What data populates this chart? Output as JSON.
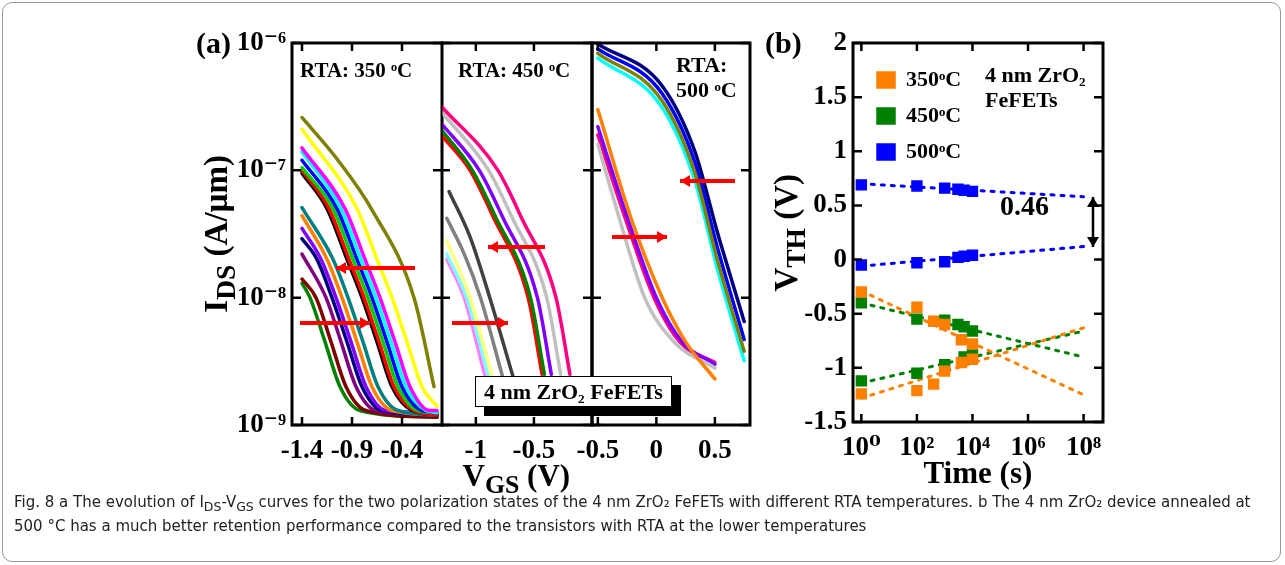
{
  "chart_data": [
    {
      "type": "line",
      "marker": "none",
      "line_style": "solid",
      "log": "y",
      "ylabel": "I$_{DS}$ (A/µm)",
      "xlim": [
        -1.5,
        0
      ],
      "xticks": [
        -1.4,
        -0.9,
        -0.4
      ],
      "ylim": [
        1e-09,
        1e-06
      ],
      "yticks": [
        {
          "value": 1e-09,
          "label": "10⁻⁹"
        },
        {
          "value": 1e-08,
          "label": "10⁻⁸"
        },
        {
          "value": 1e-07,
          "label": "10⁻⁷"
        },
        {
          "value": 1e-06,
          "label": "10⁻⁶"
        }
      ],
      "annotations": [
        "(a)",
        "RTA: 350 ᵒC"
      ],
      "series": [
        {
          "color": "#808000",
          "x": [
            -1.4,
            -1.04,
            -0.7,
            -0.28,
            -0.08
          ],
          "values": [
            2.6e-07,
            1.2e-07,
            4.9e-08,
            1e-08,
            2e-09
          ]
        },
        {
          "color": "#ffff00",
          "x": [
            -1.4,
            -0.85,
            -0.65,
            -0.5,
            -0.35,
            -0.2,
            -0.05
          ],
          "values": [
            2.1e-07,
            5e-08,
            2e-08,
            1e-08,
            4.5e-09,
            2e-09,
            1.4e-09
          ]
        },
        {
          "color": "#ff00ff",
          "x": [
            -1.4,
            -0.97,
            -0.77,
            -0.62,
            -0.47,
            -0.32,
            -0.12,
            -0.05
          ],
          "values": [
            1.5e-07,
            5e-08,
            2e-08,
            1e-08,
            4.5e-09,
            2e-09,
            1.3e-09,
            1.3e-09
          ]
        },
        {
          "color": "#00ffff",
          "x": [
            -1.4,
            -1.01,
            -0.81,
            -0.66,
            -0.51,
            -0.36,
            -0.16,
            -0.05
          ],
          "values": [
            1.4e-07,
            5e-08,
            2e-08,
            1e-08,
            4.5e-09,
            2e-09,
            1.3e-09,
            1.25e-09
          ]
        },
        {
          "color": "#0000ff",
          "x": [
            -1.4,
            -1.05,
            -0.85,
            -0.7,
            -0.55,
            -0.4,
            -0.2,
            -0.05
          ],
          "values": [
            1.2e-07,
            5e-08,
            2e-08,
            1e-08,
            4.5e-09,
            2e-09,
            1.3e-09,
            1.25e-09
          ]
        },
        {
          "color": "#00cc00",
          "x": [
            -1.4,
            -1.09,
            -0.89,
            -0.74,
            -0.59,
            -0.44,
            -0.24,
            -0.05
          ],
          "values": [
            1.05e-07,
            5e-08,
            2e-08,
            1e-08,
            4.5e-09,
            2e-09,
            1.3e-09,
            1.25e-09
          ]
        },
        {
          "color": "#ff0000",
          "x": [
            -1.4,
            -1.13,
            -0.93,
            -0.78,
            -0.63,
            -0.48,
            -0.28,
            -0.05
          ],
          "values": [
            1e-07,
            5e-08,
            2e-08,
            1e-08,
            4.5e-09,
            2e-09,
            1.3e-09,
            1.2e-09
          ]
        },
        {
          "color": "#000000",
          "x": [
            -1.4,
            -1.15,
            -0.95,
            -0.8,
            -0.65,
            -0.5,
            -0.3,
            -0.05
          ],
          "values": [
            9.5e-08,
            5e-08,
            2e-08,
            1e-08,
            4.5e-09,
            2e-09,
            1.3e-09,
            1.2e-09
          ]
        },
        {
          "color": "#008080",
          "x": [
            -1.4,
            -1.09,
            -0.94,
            -0.79,
            -0.64,
            -0.44,
            -0.05
          ],
          "values": [
            5.1e-08,
            2e-08,
            1e-08,
            4.5e-09,
            2e-09,
            1.3e-09,
            1.2e-09
          ]
        },
        {
          "color": "#ff8000",
          "x": [
            -1.4,
            -1.15,
            -1.0,
            -0.85,
            -0.7,
            -0.5,
            -0.05
          ],
          "values": [
            4.4e-08,
            2e-08,
            1e-08,
            4.5e-09,
            2e-09,
            1.3e-09,
            1.2e-09
          ]
        },
        {
          "color": "#8000ff",
          "x": [
            -1.4,
            -1.21,
            -1.06,
            -0.91,
            -0.76,
            -0.56,
            -0.05
          ],
          "values": [
            3.5e-08,
            2e-08,
            1e-08,
            4.5e-09,
            2e-09,
            1.3e-09,
            1.25e-09
          ]
        },
        {
          "color": "#000080",
          "x": [
            -1.4,
            -1.25,
            -1.1,
            -0.95,
            -0.8,
            -0.6,
            -0.05
          ],
          "values": [
            2.9e-08,
            2e-08,
            1e-08,
            4.5e-09,
            2e-09,
            1.3e-09,
            1.2e-09
          ]
        },
        {
          "color": "#800080",
          "x": [
            -1.4,
            -1.16,
            -1.01,
            -0.86,
            -0.66,
            -0.05
          ],
          "values": [
            2.2e-08,
            1e-08,
            4.5e-09,
            2e-09,
            1.3e-09,
            1.2e-09
          ]
        },
        {
          "color": "#800000",
          "x": [
            -1.4,
            -1.26,
            -1.11,
            -0.96,
            -0.76,
            -0.05
          ],
          "values": [
            1.4e-08,
            1e-08,
            4.5e-09,
            2e-09,
            1.3e-09,
            1.15e-09
          ]
        },
        {
          "color": "#008000",
          "x": [
            -1.4,
            -1.32,
            -1.17,
            -1.02,
            -0.82,
            -0.05
          ],
          "values": [
            1.3e-08,
            1e-08,
            4.5e-09,
            2e-09,
            1.3e-09,
            1.15e-09
          ]
        }
      ]
    },
    {
      "type": "line",
      "marker": "none",
      "line_style": "solid",
      "log": "y",
      "tick_labels": "x",
      "xlabel": "V$_{GS}$ (V)",
      "xlim": [
        -1.3,
        0
      ],
      "xticks": [
        -1.0,
        -0.5
      ],
      "ylim": [
        1e-09,
        1e-06
      ],
      "yticks": [
        {
          "value": 1e-09,
          "label": null
        },
        {
          "value": 1e-08,
          "label": null
        },
        {
          "value": 1e-07,
          "label": null
        },
        {
          "value": 1e-06,
          "label": null
        }
      ],
      "annotations": [
        "RTA: 450 ᵒC",
        "4 nm ZrO₂ FeFETs"
      ],
      "series": [
        {
          "color": "#ff0080",
          "x": [
            -1.3,
            -0.81,
            -0.61,
            -0.31,
            -0.19
          ],
          "values": [
            3.2e-07,
            1e-07,
            4.3e-08,
            1e-08,
            2.5e-09
          ]
        },
        {
          "color": "#c0c0c0",
          "x": [
            -1.3,
            -0.89,
            -0.69,
            -0.39,
            -0.27
          ],
          "values": [
            2.9e-07,
            1e-07,
            4.3e-08,
            1e-08,
            2.5e-09
          ]
        },
        {
          "color": "#8000ff",
          "x": [
            -1.3,
            -0.97,
            -0.77,
            -0.47,
            -0.35
          ],
          "values": [
            2.35e-07,
            1e-07,
            4.3e-08,
            1e-08,
            2.5e-09
          ]
        },
        {
          "color": "#008000",
          "x": [
            -1.3,
            -1.03,
            -0.83,
            -0.53,
            -0.41
          ],
          "values": [
            2.1e-07,
            1e-07,
            4.3e-08,
            1e-08,
            2.5e-09
          ]
        },
        {
          "color": "#ff0000",
          "x": [
            -1.3,
            -1.05,
            -0.85,
            -0.55,
            -0.43
          ],
          "values": [
            1.9e-07,
            1e-07,
            4.3e-08,
            1e-08,
            2.5e-09
          ]
        },
        {
          "color": "#404040",
          "x": [
            -1.23,
            -1.05,
            -0.88,
            -0.68
          ],
          "values": [
            6.8e-08,
            3e-08,
            1e-08,
            2.4e-09
          ]
        },
        {
          "color": "#808080",
          "x": [
            -1.25,
            -1.1,
            -0.96,
            -0.77
          ],
          "values": [
            4.2e-08,
            2.2e-08,
            1e-08,
            2.4e-09
          ]
        },
        {
          "color": "#ffff80",
          "x": [
            -1.25,
            -1.05,
            -0.86
          ],
          "values": [
            2.8e-08,
            1e-08,
            2.4e-09
          ]
        },
        {
          "color": "#80ffff",
          "x": [
            -1.25,
            -1.08,
            -0.89
          ],
          "values": [
            2.2e-08,
            1e-08,
            2.4e-09
          ]
        },
        {
          "color": "#ff80ff",
          "x": [
            -1.25,
            -1.1,
            -0.92
          ],
          "values": [
            2e-08,
            1e-08,
            2.4e-09
          ]
        }
      ]
    },
    {
      "type": "line",
      "marker": "none",
      "line_style": "solid",
      "log": "y",
      "tick_labels": "x",
      "xlim": [
        -0.55,
        0.8
      ],
      "xticks": [
        -0.5,
        0.0,
        0.5
      ],
      "ylim": [
        1e-09,
        1e-06
      ],
      "yticks": [
        {
          "value": 1e-09,
          "label": null
        },
        {
          "value": 1e-08,
          "label": null
        },
        {
          "value": 1e-07,
          "label": null
        },
        {
          "value": 1e-06,
          "label": null
        }
      ],
      "annotations": [
        "RTA: 500 ᵒC"
      ],
      "series": [
        {
          "color": "#000080",
          "x": [
            -0.5,
            0.05,
            0.33,
            0.52,
            0.75
          ],
          "values": [
            9.8e-07,
            4.6e-07,
            1.4e-07,
            3.3e-08,
            6.5e-09
          ]
        },
        {
          "color": "#808000",
          "x": [
            -0.5,
            0.05,
            0.33,
            0.52,
            0.75
          ],
          "values": [
            8.3e-07,
            3.5e-07,
            9.5e-08,
            2e-08,
            3.8e-09
          ]
        },
        {
          "color": "#00ffff",
          "x": [
            -0.5,
            0.05,
            0.33,
            0.52,
            0.75
          ],
          "values": [
            7.6e-07,
            3.1e-07,
            8.2e-08,
            1.7e-08,
            3.2e-09
          ]
        },
        {
          "color": "#0000ff",
          "x": [
            -0.5,
            0.05,
            0.33,
            0.52,
            0.75
          ],
          "values": [
            9e-07,
            4e-07,
            1.15e-07,
            2.5e-08,
            4.7e-09
          ]
        },
        {
          "color": "#ff8000",
          "x": [
            -0.5,
            -0.22,
            0.05,
            0.25,
            0.5
          ],
          "values": [
            3e-07,
            4.3e-08,
            1e-08,
            4.5e-09,
            2.3e-09
          ]
        },
        {
          "color": "#c0c0c0",
          "x": [
            -0.5,
            -0.32,
            -0.1,
            0.15,
            0.5
          ],
          "values": [
            1.6e-07,
            4.3e-08,
            1e-08,
            4.5e-09,
            2.8e-09
          ]
        },
        {
          "color": "#8000ff",
          "x": [
            -0.5,
            -0.25,
            0.0,
            0.22,
            0.5
          ],
          "values": [
            2.2e-07,
            4.3e-08,
            1e-08,
            4.5e-09,
            3e-09
          ]
        },
        {
          "color": "#ff0080",
          "x": [
            -0.5,
            -0.27,
            -0.02,
            0.2,
            0.5
          ],
          "values": [
            1.9e-07,
            4.3e-08,
            1e-08,
            4.5e-09,
            3.1e-09
          ]
        }
      ]
    },
    {
      "type": "scatter",
      "marker": "square",
      "log": "x",
      "legend": "top left",
      "xlabel": "Time (s)",
      "ylabel": "V$_{TH}$ (V)",
      "xlim": [
        0.5,
        500000000
      ],
      "xticks": [
        {
          "value": 1,
          "label": "10⁰"
        },
        {
          "value": 100,
          "label": "10²"
        },
        {
          "value": 10000,
          "label": "10⁴"
        },
        {
          "value": 1000000,
          "label": "10⁶"
        },
        {
          "value": 100000000,
          "label": "10⁸"
        }
      ],
      "ylim": [
        -1.5,
        2.0
      ],
      "yticks": [
        -1.5,
        -1.0,
        -0.5,
        0.0,
        0.5,
        1.0,
        1.5,
        2.0
      ],
      "annotations": [
        "(b)",
        "4 nm ZrO₂ FeFETs",
        "0.46",
        "Fig. 8 a The evolution of I$_{DS}$-V$_{GS}$ curves for the two polarization states of the 4 nm ZrO₂ FeFETs with different RTA temperatures. b The 4 nm ZrO₂ device annealed at 500 °C has a much better retention performance compared to the transistors with RTA at the lower temperatures"
      ],
      "series": [
        {
          "type": "line",
          "marker": "none",
          "line_style": "dotted",
          "color": "#ff8000",
          "x": [
            1,
            100000000
          ],
          "values": [
            -0.29,
            -1.25
          ]
        },
        {
          "type": "line",
          "marker": "none",
          "line_style": "dotted",
          "color": "#ff8000",
          "x": [
            1,
            100000000
          ],
          "values": [
            -1.28,
            -0.63
          ]
        },
        {
          "type": "line",
          "marker": "none",
          "line_style": "dotted",
          "color": "#008000",
          "x": [
            1,
            100000000
          ],
          "values": [
            -0.4,
            -0.9
          ]
        },
        {
          "type": "line",
          "marker": "none",
          "line_style": "dotted",
          "color": "#008000",
          "x": [
            1,
            100000000
          ],
          "values": [
            -1.14,
            -0.66
          ]
        },
        {
          "type": "line",
          "marker": "none",
          "line_style": "dotted",
          "color": "#0000ff",
          "x": [
            1,
            100000000
          ],
          "values": [
            0.7,
            0.58
          ]
        },
        {
          "type": "line",
          "marker": "none",
          "line_style": "dotted",
          "color": "#0000ff",
          "x": [
            1,
            100000000
          ],
          "values": [
            -0.06,
            0.12
          ]
        },
        {
          "name": "350ᵒC",
          "color": "#ff8000",
          "x": [
            1,
            100,
            400,
            1000,
            4000,
            10000,
            1,
            100,
            400,
            1000,
            4000,
            10000
          ],
          "values": [
            -0.3,
            -0.44,
            -0.57,
            -0.6,
            -0.74,
            -0.78,
            -1.24,
            -1.21,
            -1.15,
            -1.03,
            -0.95,
            -0.92
          ]
        },
        {
          "name": "450ᵒC",
          "color": "#008000",
          "x": [
            1,
            100,
            1000,
            3000,
            5000,
            10000,
            1,
            100,
            1000,
            5000,
            10000
          ],
          "values": [
            -0.4,
            -0.55,
            -0.56,
            -0.6,
            -0.62,
            -0.66,
            -1.12,
            -1.05,
            -0.97,
            -0.9,
            -0.86
          ]
        },
        {
          "name": "500ᵒC",
          "color": "#0000ff",
          "x": [
            1,
            100,
            1000,
            3000,
            5000,
            10000,
            1,
            100,
            1000,
            3000,
            5000,
            10000
          ],
          "values": [
            0.69,
            0.68,
            0.66,
            0.65,
            0.64,
            0.63,
            -0.05,
            -0.03,
            -0.02,
            0.02,
            0.03,
            0.04
          ]
        }
      ]
    }
  ]
}
